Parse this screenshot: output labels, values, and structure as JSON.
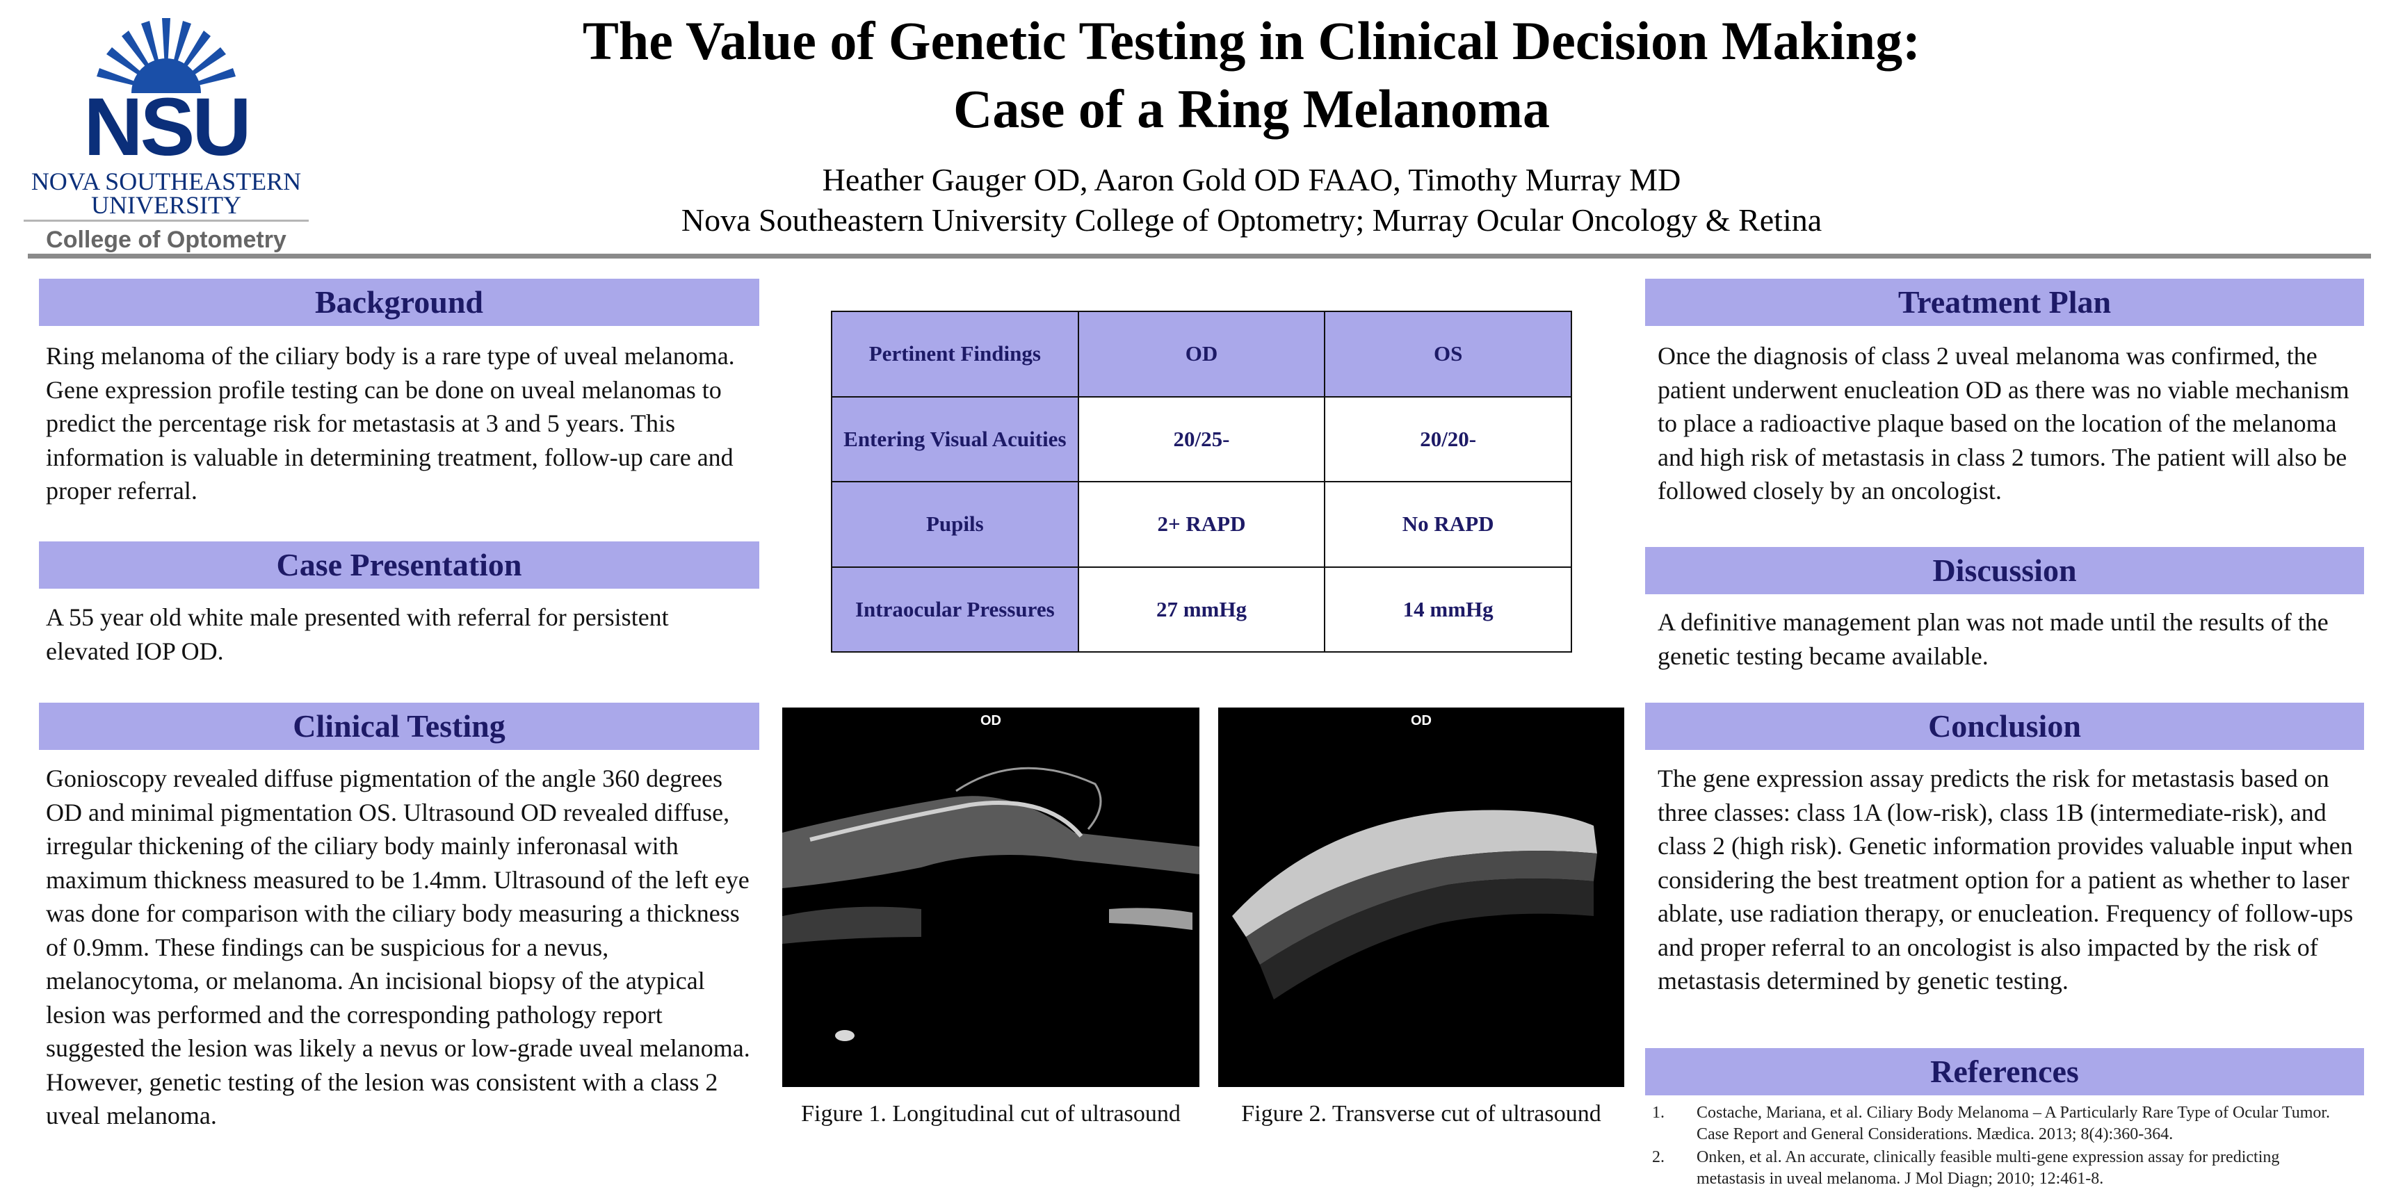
{
  "logo": {
    "acronym": "NSU",
    "university_line1": "NOVA SOUTHEASTERN",
    "university_line2": "UNIVERSITY",
    "college": "College of Optometry",
    "brand_color": "#0b2f7a"
  },
  "header": {
    "title_line1": "The Value of Genetic Testing in Clinical Decision Making:",
    "title_line2": "Case of a Ring Melanoma",
    "authors": "Heather Gauger OD, Aaron Gold OD FAAO, Timothy Murray MD",
    "affiliation": "Nova Southeastern University College of Optometry; Murray Ocular Oncology & Retina"
  },
  "colors": {
    "section_header_bg": "#aaa8ea",
    "section_header_text": "#1d1a66"
  },
  "background": {
    "heading": "Background",
    "text": "Ring melanoma of the ciliary body is a rare type of uveal melanoma. Gene expression profile testing can be done on uveal melanomas to predict the percentage risk for metastasis at 3 and 5 years. This information is valuable in determining treatment, follow-up care and proper referral."
  },
  "case_presentation": {
    "heading": "Case Presentation",
    "text": "A 55 year old white male presented with referral for persistent elevated IOP OD."
  },
  "clinical_testing": {
    "heading": "Clinical Testing",
    "text": "Gonioscopy revealed diffuse pigmentation of the angle 360 degrees OD and minimal pigmentation OS. Ultrasound OD revealed diffuse, irregular thickening of the ciliary body mainly inferonasal with maximum thickness measured to be 1.4mm. Ultrasound of the left eye was done for comparison with the ciliary body measuring a thickness of 0.9mm. These findings can be suspicious for a nevus, melanocytoma, or melanoma. An incisional biopsy of the atypical lesion was performed and the corresponding pathology report suggested the lesion was likely a nevus or low-grade uveal melanoma.  However, genetic testing of the lesion was consistent with a class 2 uveal melanoma."
  },
  "findings_table": {
    "header": [
      "Pertinent Findings",
      "OD",
      "OS"
    ],
    "rows": [
      [
        "Entering Visual Acuities",
        "20/25-",
        "20/20-"
      ],
      [
        "Pupils",
        "2+ RAPD",
        "No RAPD"
      ],
      [
        "Intraocular Pressures",
        "27 mmHg",
        "14 mmHg"
      ]
    ]
  },
  "figures": [
    {
      "tag": "OD",
      "caption": "Figure 1. Longitudinal cut of ultrasound"
    },
    {
      "tag": "OD",
      "caption": "Figure 2. Transverse cut of ultrasound"
    }
  ],
  "treatment_plan": {
    "heading": "Treatment Plan",
    "text": "Once the diagnosis of class 2 uveal melanoma was confirmed, the patient underwent enucleation OD as there was no viable mechanism to place a radioactive plaque based on the location of the melanoma and high risk of metastasis in class 2 tumors. The patient will also be followed closely by an oncologist."
  },
  "discussion": {
    "heading": "Discussion",
    "text": "A definitive management plan was not made until the results of the genetic testing became available."
  },
  "conclusion": {
    "heading": "Conclusion",
    "text": "The gene expression assay predicts the risk for metastasis based on three classes: class 1A (low-risk), class 1B (intermediate-risk), and class 2 (high risk). Genetic information provides valuable input when considering the best treatment option for a patient as whether to laser ablate, use radiation therapy, or enucleation. Frequency of follow-ups and proper referral to an oncologist is also impacted by the risk of metastasis determined by genetic testing."
  },
  "references": {
    "heading": "References",
    "items": [
      {
        "num": "1.",
        "text": "Costache, Mariana, et al. Ciliary Body Melanoma – A Particularly Rare Type of Ocular Tumor. Case Report and General Considerations. Mædica. 2013; 8(4):360-364."
      },
      {
        "num": "2.",
        "text": "Onken, et al. An accurate, clinically feasible multi-gene expression assay for predicting metastasis in uveal melanoma. J Mol Diagn; 2010; 12:461-8."
      }
    ]
  }
}
